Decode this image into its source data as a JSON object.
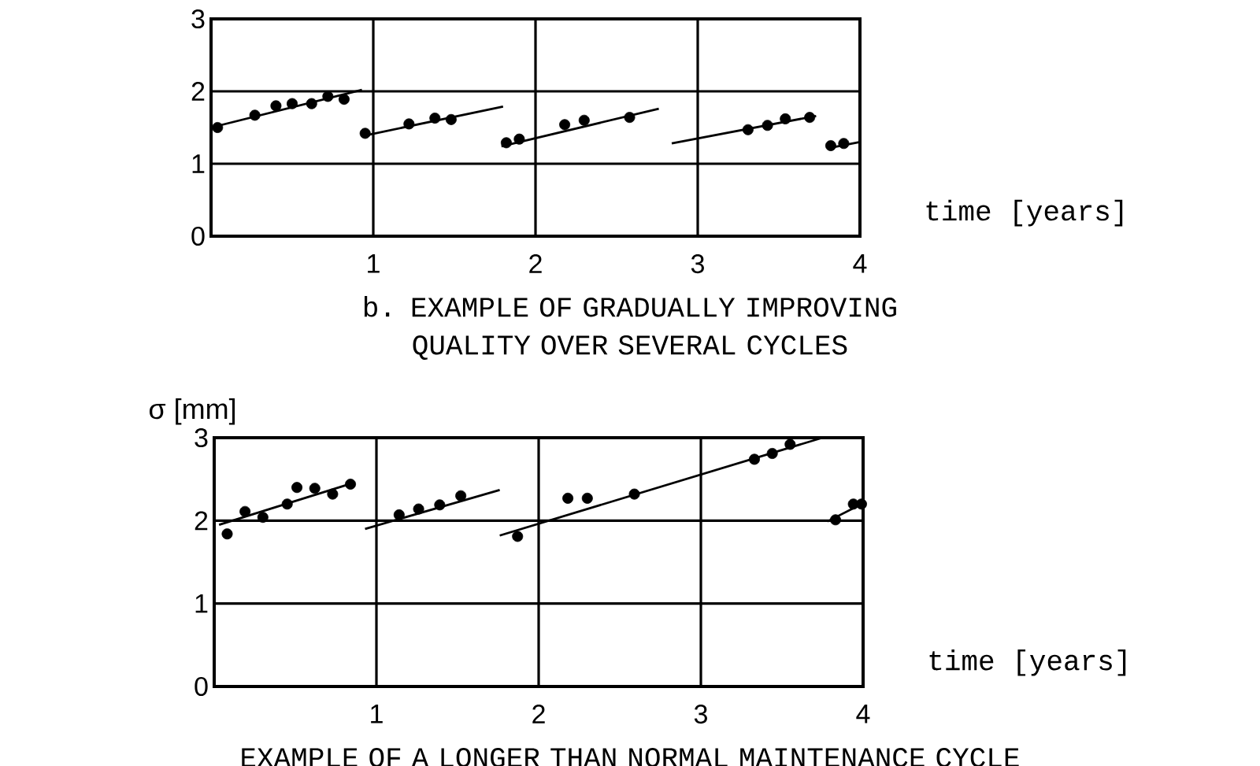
{
  "chart_data": [
    {
      "type": "scatter",
      "xlabel": "time [years]",
      "annotations": [
        "b. EXAMPLE OF GRADUALLY IMPROVING QUALITY OVER SEVERAL CYCLES"
      ],
      "xlim": [
        0,
        4
      ],
      "ylim": [
        0,
        3
      ],
      "xticks": [
        1,
        2,
        3,
        4
      ],
      "yticks": [
        0,
        1,
        2,
        3
      ],
      "grid": true,
      "series": [
        {
          "marker": "circle",
          "color": "#000000",
          "x": [
            0.04,
            0.27,
            0.4,
            0.5,
            0.62,
            0.72,
            0.82,
            0.95,
            1.22,
            1.38,
            1.48,
            1.82,
            1.9,
            2.18,
            2.3,
            2.58,
            3.31,
            3.43,
            3.54,
            3.69,
            3.82,
            3.9
          ],
          "values": [
            1.5,
            1.67,
            1.8,
            1.83,
            1.83,
            1.93,
            1.89,
            1.42,
            1.55,
            1.63,
            1.61,
            1.29,
            1.34,
            1.54,
            1.6,
            1.64,
            1.47,
            1.53,
            1.62,
            1.64,
            1.25,
            1.28
          ]
        },
        {
          "type": "line",
          "color": "#000000",
          "x": [
            0,
            0.93
          ],
          "values": [
            1.5,
            2.02
          ]
        },
        {
          "type": "line",
          "color": "#000000",
          "x": [
            0.95,
            1.8
          ],
          "values": [
            1.39,
            1.79
          ]
        },
        {
          "type": "line",
          "color": "#000000",
          "x": [
            1.79,
            2.76
          ],
          "values": [
            1.24,
            1.76
          ]
        },
        {
          "type": "line",
          "color": "#000000",
          "x": [
            2.84,
            3.73
          ],
          "values": [
            1.28,
            1.66
          ]
        },
        {
          "type": "line",
          "color": "#000000",
          "x": [
            3.82,
            4.0
          ],
          "values": [
            1.22,
            1.3
          ]
        }
      ]
    },
    {
      "type": "scatter",
      "xlabel": "time [years]",
      "ylabel": "σ [mm]",
      "annotations": [
        "EXAMPLE OF A LONGER THAN NORMAL MAINTENANCE CYCLE"
      ],
      "xlim": [
        0,
        4
      ],
      "ylim": [
        0,
        3
      ],
      "xticks": [
        1,
        2,
        3,
        4
      ],
      "yticks": [
        0,
        1,
        2,
        3
      ],
      "grid": true,
      "series": [
        {
          "marker": "circle",
          "color": "#000000",
          "x": [
            0.08,
            0.19,
            0.3,
            0.45,
            0.51,
            0.62,
            0.73,
            0.84,
            1.14,
            1.26,
            1.39,
            1.52,
            1.87,
            2.18,
            2.3,
            2.59,
            3.33,
            3.44,
            3.55,
            3.83,
            3.94,
            3.99
          ],
          "values": [
            1.84,
            2.11,
            2.04,
            2.2,
            2.4,
            2.39,
            2.32,
            2.44,
            2.07,
            2.14,
            2.19,
            2.3,
            1.81,
            2.27,
            2.27,
            2.32,
            2.74,
            2.81,
            2.92,
            2.01,
            2.2,
            2.2
          ]
        },
        {
          "type": "line",
          "color": "#000000",
          "x": [
            0.03,
            0.85
          ],
          "values": [
            1.95,
            2.45
          ]
        },
        {
          "type": "line",
          "color": "#000000",
          "x": [
            0.93,
            1.76
          ],
          "values": [
            1.9,
            2.37
          ]
        },
        {
          "type": "line",
          "color": "#000000",
          "x": [
            1.76,
            3.75
          ],
          "values": [
            1.82,
            3.0
          ]
        },
        {
          "type": "line",
          "color": "#000000",
          "x": [
            3.78,
            4.0
          ],
          "values": [
            1.99,
            2.21
          ]
        }
      ]
    }
  ]
}
